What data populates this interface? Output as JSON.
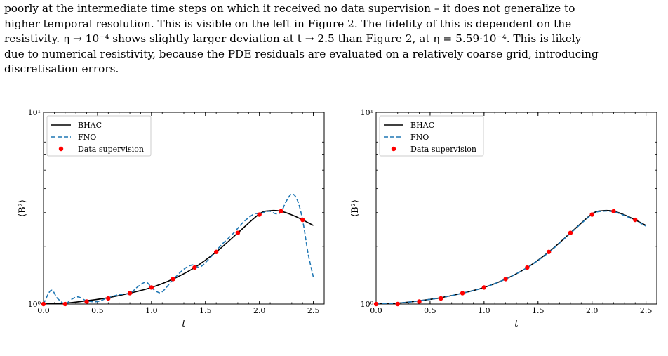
{
  "paragraph": [
    "poorly at the intermediate time steps on which it received no data supervision – it does not generalize to",
    "higher temporal resolution. This is visible on the left in Figure 2. The fidelity of this is dependent on the",
    "resistivity. η → 10⁻⁴ shows slightly larger deviation at t → 2.5 than Figure 2, at η = 5.59·10⁻⁴. This is likely",
    "due to numerical resistivity, because the PDE residuals are evaluated on a relatively coarse grid, introducing",
    "discretisation errors."
  ],
  "colors": {
    "bhac": "#000000",
    "fno": "#1f77b4",
    "supervision": "#ff0000"
  },
  "chart_data": [
    {
      "type": "line",
      "panel": "left",
      "xlabel": "t",
      "ylabel": "⟨B²⟩",
      "xlim": [
        0.0,
        2.6
      ],
      "ylim": [
        1,
        10
      ],
      "yscale": "log",
      "xticks": [
        "0.0",
        "0.5",
        "1.0",
        "1.5",
        "2.0",
        "2.5"
      ],
      "yticks": [
        "10⁰",
        "10¹"
      ],
      "legend_position": "top-left",
      "series": [
        {
          "name": "BHAC",
          "style": "solid",
          "x": [
            0.0,
            0.2,
            0.4,
            0.6,
            0.8,
            1.0,
            1.2,
            1.4,
            1.6,
            1.8,
            2.0,
            2.1,
            2.2,
            2.3,
            2.4,
            2.5
          ],
          "y": [
            1.0,
            1.01,
            1.04,
            1.08,
            1.14,
            1.22,
            1.35,
            1.55,
            1.87,
            2.35,
            2.95,
            3.07,
            3.05,
            2.92,
            2.75,
            2.57
          ]
        },
        {
          "name": "FNO",
          "style": "dashed",
          "x": [
            0.0,
            0.07,
            0.13,
            0.2,
            0.25,
            0.32,
            0.4,
            0.5,
            0.6,
            0.7,
            0.8,
            0.88,
            0.95,
            1.0,
            1.05,
            1.1,
            1.2,
            1.3,
            1.38,
            1.45,
            1.55,
            1.65,
            1.75,
            1.85,
            1.95,
            2.0,
            2.05,
            2.1,
            2.15,
            2.2,
            2.25,
            2.3,
            2.35,
            2.4,
            2.45,
            2.5
          ],
          "y": [
            1.0,
            1.18,
            1.07,
            1.0,
            1.05,
            1.09,
            1.04,
            1.03,
            1.08,
            1.12,
            1.14,
            1.24,
            1.3,
            1.22,
            1.16,
            1.16,
            1.34,
            1.52,
            1.6,
            1.56,
            1.76,
            2.04,
            2.31,
            2.67,
            2.95,
            2.95,
            3.02,
            3.05,
            2.96,
            3.02,
            3.45,
            3.75,
            3.5,
            2.75,
            1.85,
            1.38
          ]
        }
      ],
      "points": {
        "name": "Data supervision",
        "x": [
          0.0,
          0.2,
          0.4,
          0.6,
          0.8,
          1.0,
          1.2,
          1.4,
          1.6,
          1.8,
          2.0,
          2.2,
          2.4
        ],
        "y": [
          1.0,
          1.0,
          1.03,
          1.07,
          1.14,
          1.22,
          1.35,
          1.55,
          1.87,
          2.35,
          2.93,
          3.05,
          2.75
        ]
      }
    },
    {
      "type": "line",
      "panel": "right",
      "xlabel": "t",
      "ylabel": "⟨B²⟩",
      "xlim": [
        0.0,
        2.6
      ],
      "ylim": [
        1,
        10
      ],
      "yscale": "log",
      "xticks": [
        "0.0",
        "0.5",
        "1.0",
        "1.5",
        "2.0",
        "2.5"
      ],
      "yticks": [
        "10⁰",
        "10¹"
      ],
      "legend_position": "top-left",
      "series": [
        {
          "name": "BHAC",
          "style": "solid",
          "x": [
            0.0,
            0.2,
            0.4,
            0.6,
            0.8,
            1.0,
            1.2,
            1.4,
            1.6,
            1.8,
            2.0,
            2.1,
            2.2,
            2.3,
            2.4,
            2.5
          ],
          "y": [
            1.0,
            1.01,
            1.04,
            1.08,
            1.14,
            1.22,
            1.35,
            1.55,
            1.87,
            2.35,
            2.95,
            3.07,
            3.05,
            2.92,
            2.75,
            2.57
          ]
        },
        {
          "name": "FNO",
          "style": "dashed",
          "x": [
            0.0,
            0.2,
            0.4,
            0.6,
            0.8,
            1.0,
            1.2,
            1.4,
            1.6,
            1.8,
            2.0,
            2.1,
            2.2,
            2.3,
            2.4,
            2.5
          ],
          "y": [
            1.0,
            1.01,
            1.04,
            1.08,
            1.14,
            1.22,
            1.35,
            1.55,
            1.86,
            2.34,
            2.93,
            3.05,
            3.03,
            2.9,
            2.73,
            2.55
          ]
        }
      ],
      "points": {
        "name": "Data supervision",
        "x": [
          0.0,
          0.2,
          0.4,
          0.6,
          0.8,
          1.0,
          1.2,
          1.4,
          1.6,
          1.8,
          2.0,
          2.2,
          2.4
        ],
        "y": [
          1.0,
          1.0,
          1.03,
          1.07,
          1.14,
          1.22,
          1.35,
          1.55,
          1.87,
          2.35,
          2.93,
          3.05,
          2.75
        ]
      }
    }
  ]
}
